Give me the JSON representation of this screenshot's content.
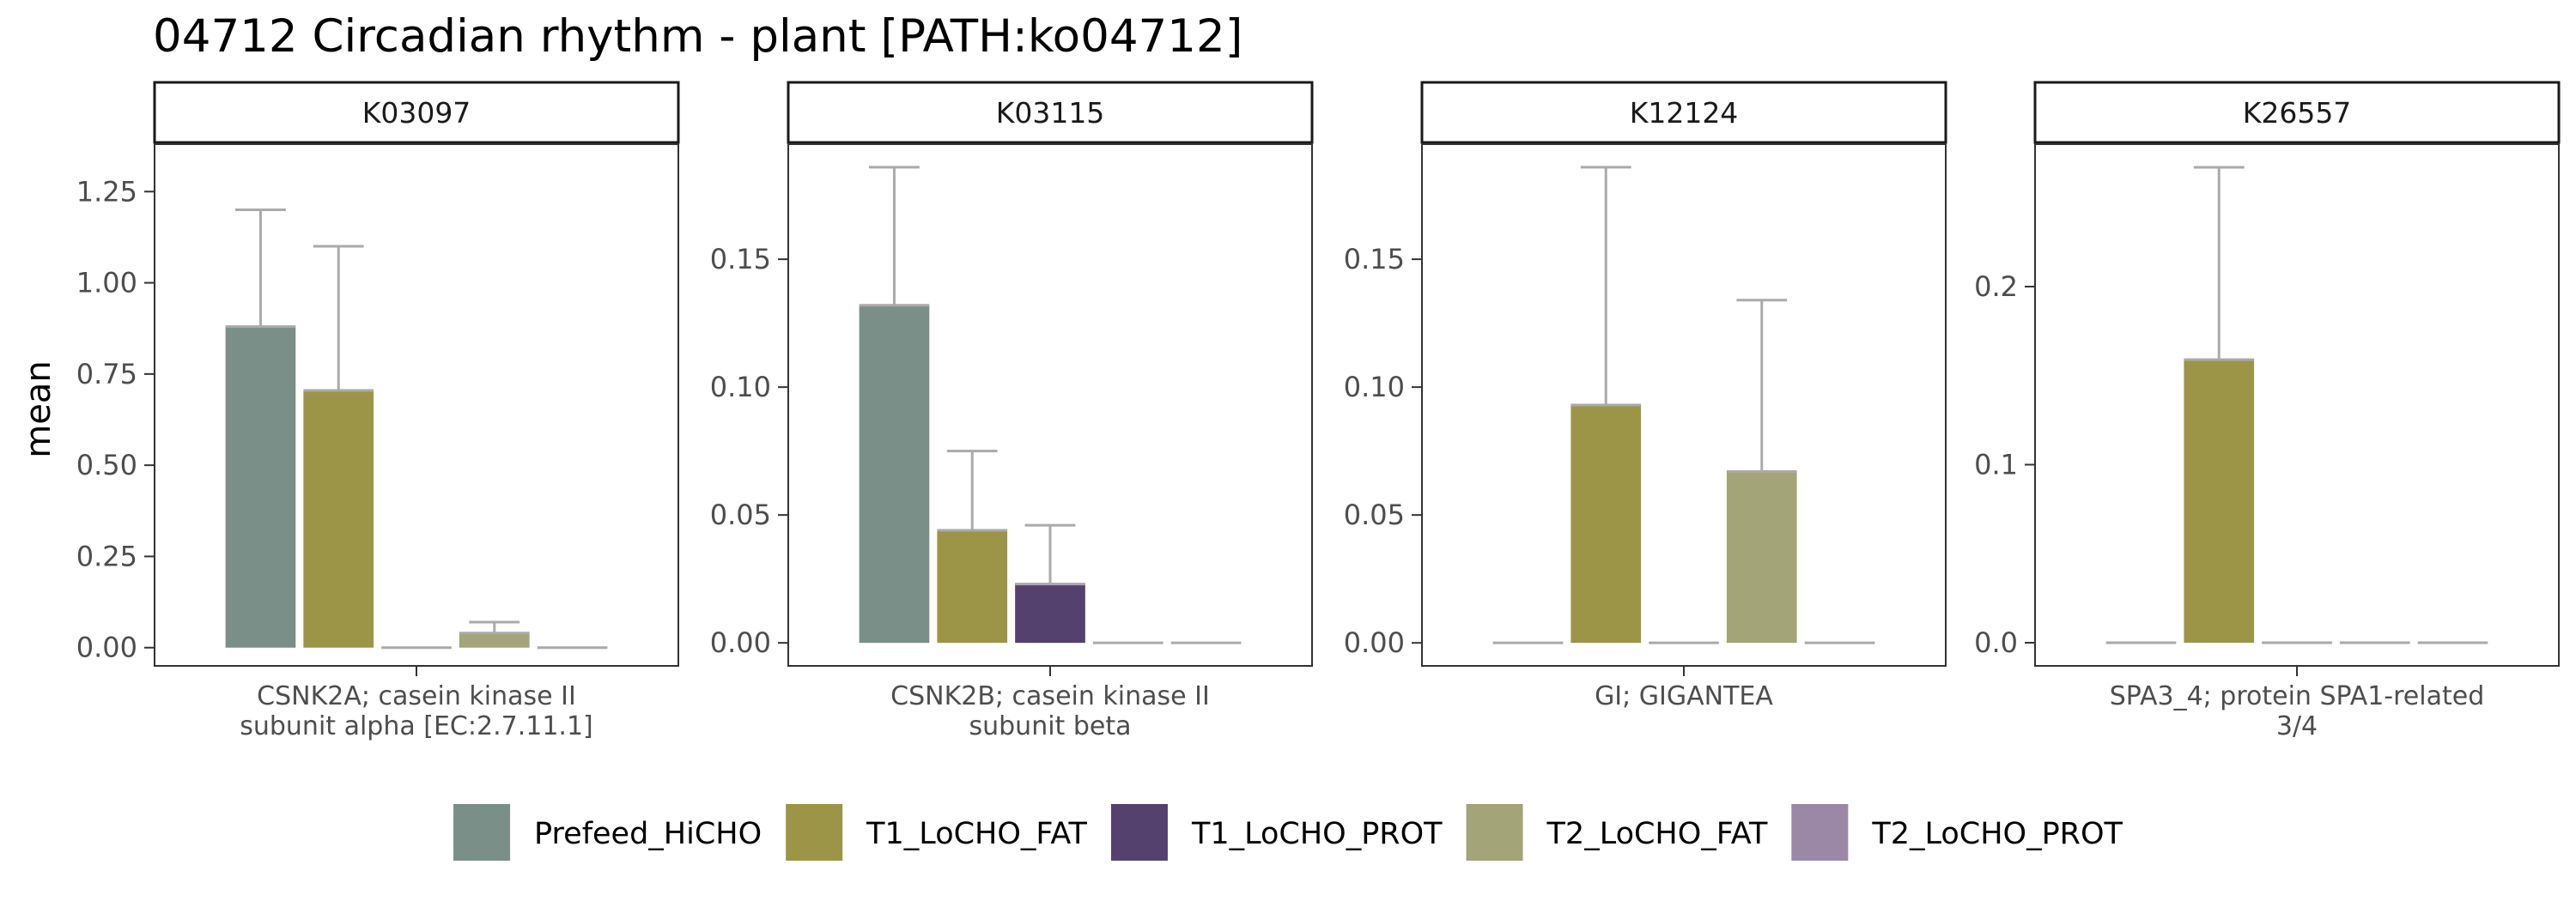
{
  "chart_data": {
    "type": "bar",
    "title": "04712 Circadian rhythm - plant [PATH:ko04712]",
    "ylabel": "mean",
    "legend_position": "bottom",
    "legend": [
      {
        "name": "Prefeed_HiCHO",
        "color": "#7a8f87"
      },
      {
        "name": "T1_LoCHO_FAT",
        "color": "#9c9548"
      },
      {
        "name": "T1_LoCHO_PROT",
        "color": "#54416e"
      },
      {
        "name": "T2_LoCHO_FAT",
        "color": "#a3a477"
      },
      {
        "name": "T2_LoCHO_PROT",
        "color": "#9b87a6"
      }
    ],
    "error_bar_color": "#aaaaaa",
    "panels": [
      {
        "strip": "K03097",
        "category_lines": [
          "CSNK2A; casein kinase II",
          "subunit alpha [EC:2.7.11.1]"
        ],
        "ylim": [
          -0.05,
          1.38
        ],
        "ticks": [
          0,
          0.25,
          0.5,
          0.75,
          1.0,
          1.25
        ],
        "tick_labels": [
          "0.00",
          "0.25",
          "0.50",
          "0.75",
          "1.00",
          "1.25"
        ],
        "values": [
          0.88,
          0.705,
          0.0,
          0.04,
          0.0
        ],
        "errors": [
          1.2,
          1.1,
          null,
          0.07,
          null
        ]
      },
      {
        "strip": "K03115",
        "category_lines": [
          "CSNK2B; casein kinase II",
          "subunit beta"
        ],
        "ylim": [
          -0.009,
          0.195
        ],
        "ticks": [
          0,
          0.05,
          0.1,
          0.15
        ],
        "tick_labels": [
          "0.00",
          "0.05",
          "0.10",
          "0.15"
        ],
        "values": [
          0.132,
          0.044,
          0.023,
          0.0,
          0.0
        ],
        "errors": [
          0.186,
          0.075,
          0.046,
          null,
          null
        ]
      },
      {
        "strip": "K12124",
        "category_lines": [
          "GI; GIGANTEA"
        ],
        "ylim": [
          -0.009,
          0.195
        ],
        "ticks": [
          0,
          0.05,
          0.1,
          0.15
        ],
        "tick_labels": [
          "0.00",
          "0.05",
          "0.10",
          "0.15"
        ],
        "values": [
          0.0,
          0.093,
          0.0,
          0.067,
          0.0
        ],
        "errors": [
          null,
          0.186,
          null,
          0.134,
          null
        ]
      },
      {
        "strip": "K26557",
        "category_lines": [
          "SPA3_4; protein SPA1-related",
          "3/4"
        ],
        "ylim": [
          -0.013,
          0.28
        ],
        "ticks": [
          0,
          0.1,
          0.2
        ],
        "tick_labels": [
          "0.0",
          "0.1",
          "0.2"
        ],
        "values": [
          0.0,
          0.159,
          0.0,
          0.0,
          0.0
        ],
        "errors": [
          null,
          0.267,
          null,
          null,
          null
        ]
      }
    ]
  }
}
